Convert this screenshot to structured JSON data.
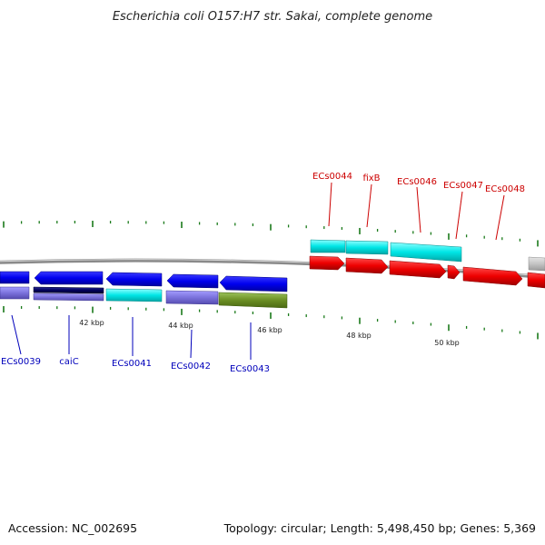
{
  "title": "Escherichia coli O157:H7 str. Sakai, complete genome",
  "footer": {
    "accession": "Accession: NC_002695",
    "summary": "Topology: circular; Length: 5,498,450 bp; Genes: 5,369"
  },
  "colors": {
    "forward_cds": "#ee0000",
    "reverse_cds": "#0000ee",
    "forward_feature": "#00e6e6",
    "reverse_feature": "#7b72dc",
    "dark_feature": "#00005a",
    "olive_feature": "#6b8e23",
    "other_feature": "#b8b8b8",
    "backbone": "#8a8a8a",
    "tick": "#1a7a1a",
    "label_forward": "#cc0000",
    "label_reverse": "#0000bb"
  },
  "scale": {
    "labels": [
      "42 kbp",
      "44 kbp",
      "46 kbp",
      "48 kbp",
      "50 kbp"
    ]
  },
  "gene_labels": {
    "forward": [
      "ECs0044",
      "fixB",
      "ECs0046",
      "ECs0047",
      "ECs0048"
    ],
    "reverse": [
      "ECs0039",
      "caiC",
      "ECs0041",
      "ECs0042",
      "ECs0043"
    ]
  }
}
